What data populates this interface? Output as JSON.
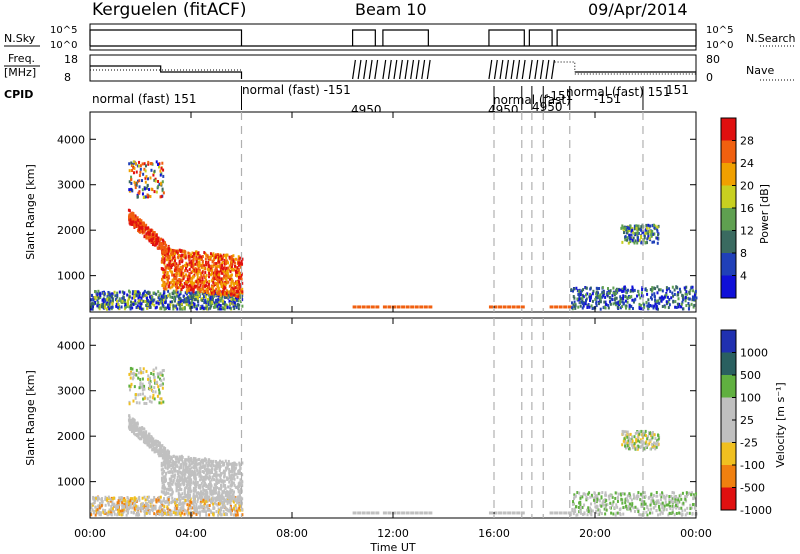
{
  "header": {
    "station": "Kerguelen (fitACF)",
    "beam": "Beam 10",
    "date": "09/Apr/2014"
  },
  "panel_labels": {
    "nsky": "N.Sky",
    "freq_1": "Freq.",
    "freq_2": "[MHz]",
    "cpid": "CPID",
    "nsearch": "N.Search",
    "nave": "Nave"
  },
  "small_axes": {
    "nsky_ticks": [
      "10^5",
      "10^0"
    ],
    "nsearch_ticks": [
      "10^5",
      "10^0"
    ],
    "freq_ticks": [
      "18",
      "8"
    ],
    "nave_ticks": [
      "80",
      "0"
    ]
  },
  "cpid_segments": [
    {
      "label": "normal (fast) 151",
      "start_h": 0.0
    },
    {
      "label": "normal (fast) -151",
      "start_h": 6.0
    },
    {
      "label": "4950",
      "start_h": 10.3
    },
    {
      "label": "4950",
      "start_h": 16.0
    },
    {
      "label": "normal (fast)",
      "start_h": 16.2
    },
    {
      "label": "-151",
      "start_h": 17.6
    },
    {
      "label": "4950",
      "start_h": 17.6
    },
    {
      "label": "normal (fast) 151",
      "start_h": 19.0
    },
    {
      "label": "-151",
      "start_h": 20.2
    },
    {
      "label": "151",
      "start_h": 21.4
    }
  ],
  "chart_data": [
    {
      "type": "heatmap",
      "title": "Power",
      "ylabel": "Slant Range [km]",
      "xlabel": "Time UT",
      "xlim_hours": [
        0,
        24
      ],
      "ylim_km": [
        200,
        4600
      ],
      "colorbar": {
        "label": "Power [dB]",
        "ticks": [
          4,
          8,
          12,
          16,
          20,
          24,
          28
        ]
      }
    },
    {
      "type": "heatmap",
      "title": "Velocity",
      "ylabel": "Slant Range [km]",
      "xlabel": "Time UT",
      "xlim_hours": [
        0,
        24
      ],
      "ylim_km": [
        200,
        4600
      ],
      "colorbar": {
        "label": "Velocity  [m s⁻¹]",
        "ticks": [
          "1000",
          "500",
          "100",
          "25",
          "-25",
          "-100",
          "-500",
          "-1000"
        ]
      }
    }
  ],
  "axes": {
    "y_ticks": [
      "1000",
      "2000",
      "3000",
      "4000"
    ],
    "x_ticks": [
      "00:00",
      "04:00",
      "08:00",
      "12:00",
      "16:00",
      "20:00",
      "00:00"
    ],
    "xlabel": "Time UT",
    "ylabel": "Slant Range [km]"
  },
  "colors": {
    "power": [
      "#1010d8",
      "#2040b8",
      "#3a6a60",
      "#5fa050",
      "#c8d020",
      "#f0a000",
      "#f06010",
      "#e01010"
    ],
    "velocity": [
      "#2030b0",
      "#2a6060",
      "#60b040",
      "#c0c0c0",
      "#c0c0c0",
      "#f0c020",
      "#f08010",
      "#e01010"
    ]
  }
}
